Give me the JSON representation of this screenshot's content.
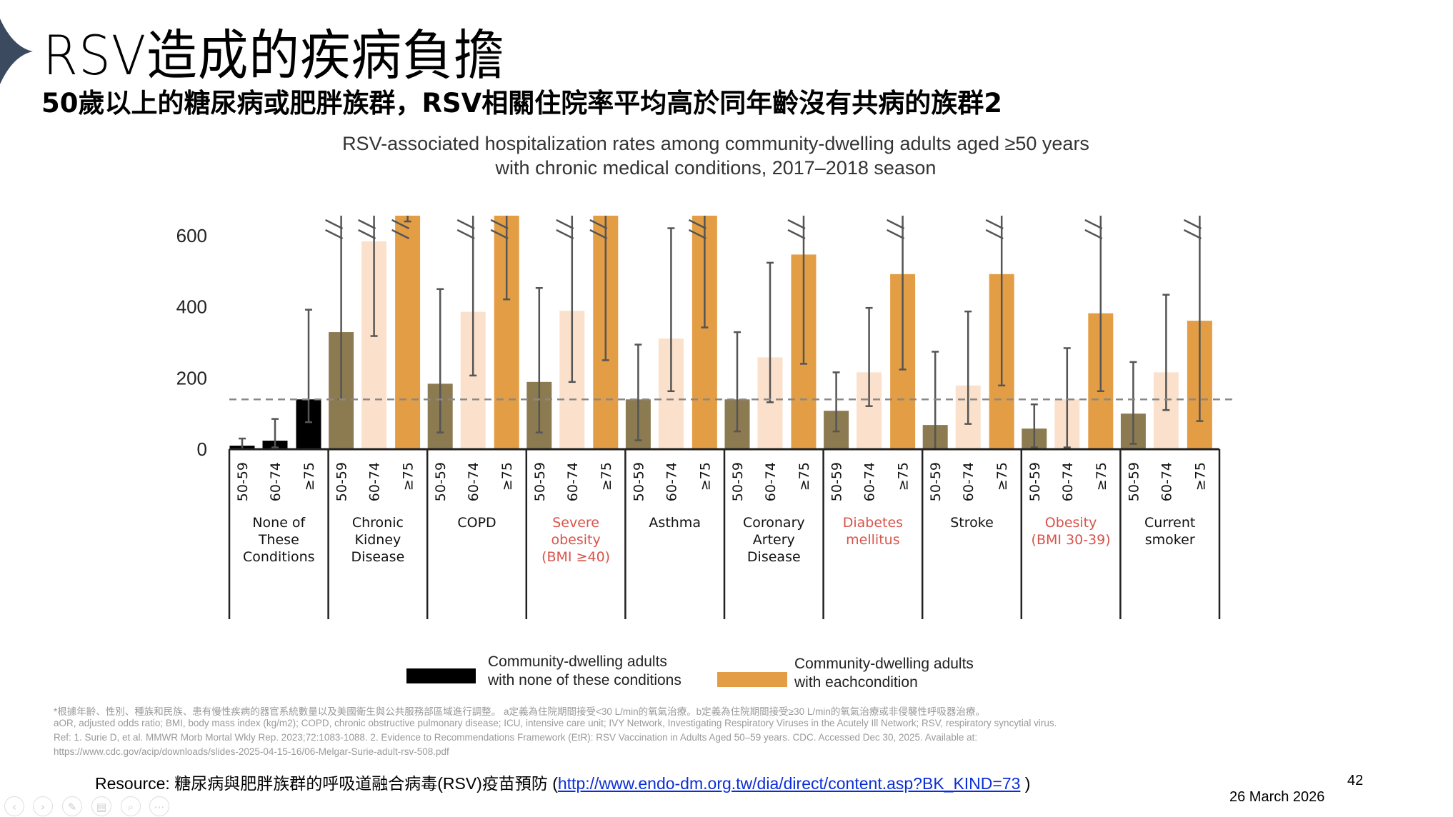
{
  "slide": {
    "title": "RSV造成的疾病負擔",
    "subtitle": "50歲以上的糖尿病或肥胖族群，RSV相關住院率平均高於同年齡沒有共病的族群2",
    "page_number": "42",
    "date": "26 March 2026",
    "resource_prefix": "Resource: 糖尿病與肥胖族群的呼吸道融合病毒(RSV)疫苗預防 (",
    "resource_link": "http://www.endo-dm.org.tw/dia/direct/content.asp?BK_KIND=73",
    "resource_suffix": " )",
    "footnotes": [
      "*根據年齡、性別、種族和民族、患有慢性疾病的器官系統數量以及美國衛生與公共服務部區域進行調整。 a定義為住院期間接受<30 L/min的氧氣治療。b定義為住院期間接受≥30 L/min的氧氣治療或非侵襲性呼吸器治療。",
      "aOR, adjusted odds ratio; BMI, body mass index (kg/m2); COPD, chronic obstructive pulmonary disease; ICU, intensive care unit; IVY Network, Investigating Respiratory Viruses in the Acutely Ill Network; RSV, respiratory syncytial virus.",
      "Ref: 1. Surie D, et al. MMWR Morb Mortal Wkly Rep. 2023;72:1083-1088. 2. Evidence to Recommendations Framework (EtR): RSV Vaccination in Adults Aged 50–59 years. CDC. Accessed Dec 30, 2025. Available at:",
      "https://www.cdc.gov/acip/downloads/slides-2025-04-15-16/06-Melgar-Surie-adult-rsv-508.pdf"
    ],
    "nav_icons": [
      "previous-icon",
      "next-icon",
      "pen-icon",
      "slides-icon",
      "zoom-icon",
      "more-icon"
    ]
  },
  "chart_data": {
    "type": "bar",
    "title": "RSV-associated hospitalization rates among community-dwelling adults aged ≥50 years",
    "title_line2": "with chronic medical conditions, 2017–2018 season",
    "ylim": [
      0,
      600
    ],
    "yticks": [
      0,
      200,
      400,
      600
    ],
    "reference_line": 140,
    "grid": false,
    "legend_placement": "bottom",
    "age_groups": [
      "50-59",
      "60-74",
      "≥75"
    ],
    "legend": [
      {
        "line1": "Community-dwelling adults",
        "line2": "with none of these conditions",
        "color": "#000000"
      },
      {
        "line1": "Community-dwelling adults",
        "line2": "with eachcondition",
        "color": "#e39e45"
      }
    ],
    "colors": {
      "none": "#000000",
      "50-59": "#8c7b50",
      "60-74": "#fbe1cc",
      "≥75": "#e39e45",
      "highlight_label": "#d9534a",
      "reference_line": "#888888"
    },
    "categories": [
      {
        "label": [
          "None of",
          "These",
          "Conditions"
        ],
        "highlight": false,
        "values": [
          10,
          24,
          140
        ],
        "err_low": [
          0,
          5,
          76
        ],
        "err_high": [
          30,
          85,
          392
        ]
      },
      {
        "label": [
          "Chronic",
          "Kidney",
          "Disease"
        ],
        "highlight": false,
        "values": [
          329,
          584,
          null
        ],
        "err_low": [
          140,
          318,
          640
        ],
        "err_high": [
          null,
          null,
          null
        ]
      },
      {
        "label": [
          "COPD"
        ],
        "highlight": false,
        "values": [
          184,
          386,
          null
        ],
        "err_low": [
          47,
          207,
          421
        ],
        "err_high": [
          450,
          null,
          null
        ]
      },
      {
        "label": [
          "Severe",
          "obesity",
          "(BMI ≥40)"
        ],
        "highlight": true,
        "values": [
          189,
          389,
          null
        ],
        "err_low": [
          47,
          189,
          250
        ],
        "err_high": [
          453,
          null,
          null
        ]
      },
      {
        "label": [
          "Asthma"
        ],
        "highlight": false,
        "values": [
          140,
          311,
          null
        ],
        "err_low": [
          25,
          163,
          342
        ],
        "err_high": [
          294,
          621,
          null
        ]
      },
      {
        "label": [
          "Coronary",
          "Artery",
          "Disease"
        ],
        "highlight": false,
        "values": [
          140,
          258,
          547
        ],
        "err_low": [
          50,
          132,
          240
        ],
        "err_high": [
          329,
          524,
          null
        ]
      },
      {
        "label": [
          "Diabetes",
          "mellitus"
        ],
        "highlight": true,
        "values": [
          108,
          216,
          492
        ],
        "err_low": [
          50,
          121,
          224
        ],
        "err_high": [
          216,
          397,
          null
        ]
      },
      {
        "label": [
          "Stroke"
        ],
        "highlight": false,
        "values": [
          68,
          179,
          492
        ],
        "err_low": [
          0,
          71,
          179
        ],
        "err_high": [
          274,
          387,
          null
        ]
      },
      {
        "label": [
          "Obesity",
          "(BMI 30-39)"
        ],
        "highlight": true,
        "values": [
          58,
          140,
          382
        ],
        "err_low": [
          5,
          5,
          163
        ],
        "err_high": [
          126,
          284,
          null
        ]
      },
      {
        "label": [
          "Current",
          "smoker"
        ],
        "highlight": false,
        "values": [
          100,
          216,
          361
        ],
        "err_low": [
          15,
          110,
          79
        ],
        "err_high": [
          245,
          434,
          null
        ]
      }
    ]
  }
}
